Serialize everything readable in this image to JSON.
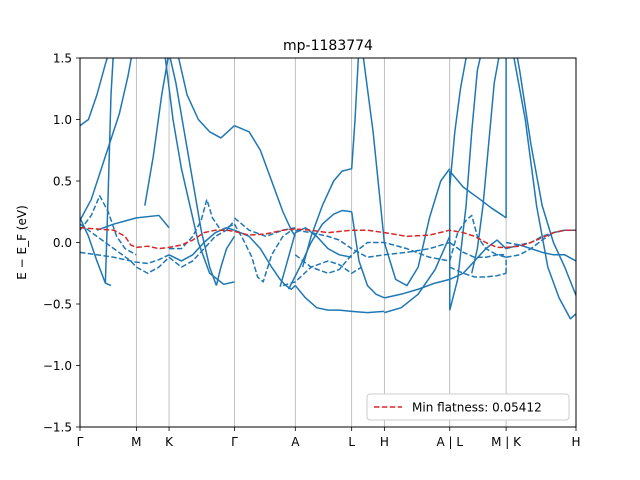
{
  "chart_data": {
    "type": "line",
    "title": "mp-1183774",
    "ylabel": "E − E_F (eV)",
    "ylim": [
      -1.5,
      1.5
    ],
    "xlim": [
      0,
      8.8
    ],
    "yticks": [
      -1.5,
      -1.0,
      -0.5,
      0.0,
      0.5,
      1.0,
      1.5
    ],
    "ytick_labels": [
      "−1.5",
      "−1.0",
      "−0.5",
      "0.0",
      "0.5",
      "1.0",
      "1.5"
    ],
    "kpoints": [
      {
        "label": "Γ",
        "x": 0.0
      },
      {
        "label": "M",
        "x": 1.0
      },
      {
        "label": "K",
        "x": 1.58
      },
      {
        "label": "Γ",
        "x": 2.74
      },
      {
        "label": "A",
        "x": 3.82
      },
      {
        "label": "L",
        "x": 4.82
      },
      {
        "label": "H",
        "x": 5.4
      },
      {
        "label": "A | L",
        "x": 6.56
      },
      {
        "label": "M | K",
        "x": 7.56
      },
      {
        "label": "H",
        "x": 8.8
      }
    ],
    "legend": {
      "label": "Min flatness: 0.05412",
      "location": "lower right"
    },
    "colors": {
      "band": "#1f77b4",
      "flat": "#d62728"
    },
    "series": [
      {
        "style": "solid",
        "x": [
          0,
          0.15,
          0.3,
          0.45,
          0.55
        ],
        "y": [
          0.95,
          1.0,
          1.2,
          1.45,
          1.6
        ]
      },
      {
        "style": "solid",
        "x": [
          0,
          0.2,
          0.45,
          0.7,
          0.85,
          0.95
        ],
        "y": [
          0.18,
          0.35,
          0.7,
          1.05,
          1.35,
          1.6
        ]
      },
      {
        "style": "solid",
        "x": [
          0,
          0.15,
          0.3,
          0.45,
          0.55
        ],
        "y": [
          0.2,
          0.05,
          -0.15,
          -0.33,
          -0.35
        ]
      },
      {
        "style": "solid",
        "x": [
          0.45,
          0.5,
          0.55,
          0.6
        ],
        "y": [
          -0.33,
          0.4,
          1.2,
          1.6
        ]
      },
      {
        "style": "solid",
        "x": [
          0.3,
          0.6,
          1.0,
          1.4,
          1.58
        ],
        "y": [
          0.1,
          0.15,
          0.2,
          0.22,
          0.12
        ]
      },
      {
        "style": "solid",
        "x": [
          1.15,
          1.3,
          1.45,
          1.6,
          1.75,
          1.9,
          2.1,
          2.3,
          2.5,
          2.74
        ],
        "y": [
          0.3,
          0.7,
          1.2,
          1.6,
          1.5,
          1.2,
          1.0,
          0.9,
          0.85,
          0.95
        ]
      },
      {
        "style": "solid",
        "x": [
          1.55,
          1.7,
          1.85,
          2.0,
          2.15,
          2.3,
          2.42
        ],
        "y": [
          1.6,
          1.3,
          0.9,
          0.5,
          0.1,
          -0.2,
          -0.35
        ]
      },
      {
        "style": "solid",
        "x": [
          1.5,
          1.65,
          1.8,
          1.95,
          2.1,
          2.3,
          2.55,
          2.74
        ],
        "y": [
          1.55,
          1.0,
          0.6,
          0.3,
          0.0,
          -0.25,
          -0.34,
          -0.32
        ]
      },
      {
        "style": "solid",
        "x": [
          2.42,
          2.5,
          2.6,
          2.74
        ],
        "y": [
          -0.35,
          -0.2,
          -0.05,
          0.05
        ]
      },
      {
        "style": "solid",
        "x": [
          1.58,
          1.8,
          2.0,
          2.2,
          2.4,
          2.6,
          2.74
        ],
        "y": [
          -0.1,
          -0.15,
          -0.1,
          0.0,
          0.08,
          0.12,
          0.1
        ]
      },
      {
        "style": "solid",
        "x": [
          2.74,
          3.0,
          3.2,
          3.4,
          3.6,
          3.75,
          3.82
        ],
        "y": [
          0.95,
          0.9,
          0.75,
          0.5,
          0.25,
          0.1,
          0.05
        ]
      },
      {
        "style": "solid",
        "x": [
          2.74,
          3.0,
          3.2,
          3.4,
          3.55,
          3.65,
          3.75,
          3.82
        ],
        "y": [
          0.1,
          0.05,
          -0.05,
          -0.2,
          -0.3,
          -0.35,
          -0.38,
          -0.35
        ]
      },
      {
        "style": "solid",
        "x": [
          3.55,
          3.65,
          3.82,
          4.0,
          4.2,
          4.4,
          4.6,
          4.82
        ],
        "y": [
          -0.36,
          -0.2,
          0.08,
          0.12,
          0.05,
          -0.05,
          -0.1,
          -0.12
        ]
      },
      {
        "style": "solid",
        "x": [
          3.7,
          3.9,
          4.1,
          4.3,
          4.5,
          4.65,
          4.82
        ],
        "y": [
          -0.38,
          -0.2,
          0.0,
          0.15,
          0.23,
          0.26,
          0.25
        ]
      },
      {
        "style": "solid",
        "x": [
          3.82,
          4.0,
          4.2,
          4.4,
          4.6,
          4.82,
          5.1,
          5.4
        ],
        "y": [
          -0.35,
          -0.45,
          -0.53,
          -0.55,
          -0.55,
          -0.56,
          -0.57,
          -0.56
        ]
      },
      {
        "style": "solid",
        "x": [
          3.95,
          4.1,
          4.3,
          4.5,
          4.65,
          4.82,
          4.88,
          4.95
        ],
        "y": [
          -0.2,
          0.05,
          0.3,
          0.5,
          0.58,
          0.6,
          1.0,
          1.6
        ]
      },
      {
        "style": "solid",
        "x": [
          4.82,
          4.95,
          5.1,
          5.25,
          5.4
        ],
        "y": [
          0.25,
          -0.15,
          -0.35,
          -0.42,
          -0.45
        ]
      },
      {
        "style": "solid",
        "x": [
          5.4,
          5.7,
          6.0,
          6.3,
          6.56
        ],
        "y": [
          -0.45,
          -0.42,
          -0.38,
          -0.33,
          -0.3
        ]
      },
      {
        "style": "solid",
        "x": [
          5.4,
          5.7,
          6.0,
          6.3,
          6.56
        ],
        "y": [
          -0.57,
          -0.53,
          -0.42,
          -0.22,
          0.05
        ]
      },
      {
        "style": "solid",
        "x": [
          5.0,
          5.2,
          5.4,
          5.6,
          5.8,
          6.0,
          6.2,
          6.4,
          6.56
        ],
        "y": [
          1.6,
          0.9,
          0.0,
          -0.3,
          -0.35,
          -0.2,
          0.2,
          0.5,
          0.6
        ]
      },
      {
        "style": "solid",
        "x": [
          6.56,
          6.8,
          7.1,
          7.3,
          7.5,
          7.56
        ],
        "y": [
          0.58,
          0.45,
          0.35,
          0.28,
          0.22,
          0.2
        ]
      },
      {
        "style": "solid",
        "x": [
          6.56,
          6.65,
          6.75,
          6.85,
          6.95,
          7.05
        ],
        "y": [
          0.45,
          0.9,
          1.25,
          1.5,
          1.6,
          1.5
        ]
      },
      {
        "style": "solid",
        "x": [
          6.56,
          6.7,
          6.85,
          6.95,
          7.05,
          7.15
        ],
        "y": [
          -0.55,
          -0.3,
          0.3,
          0.9,
          1.4,
          1.6
        ]
      },
      {
        "style": "solid",
        "x": [
          6.95,
          7.05,
          7.15,
          7.25,
          7.35,
          7.45,
          7.56
        ],
        "y": [
          -0.25,
          -0.05,
          0.3,
          0.8,
          1.3,
          1.55,
          1.6
        ]
      },
      {
        "style": "solid",
        "x": [
          7.56,
          7.65,
          7.72,
          7.8,
          8.0,
          8.2,
          8.4,
          8.6,
          8.8
        ],
        "y": [
          1.5,
          1.55,
          1.6,
          1.4,
          0.8,
          0.3,
          0.0,
          -0.2,
          -0.43
        ]
      },
      {
        "style": "solid",
        "x": [
          7.56,
          7.7,
          7.9,
          8.1,
          8.3,
          8.5,
          8.7,
          8.8
        ],
        "y": [
          1.6,
          1.5,
          1.0,
          0.3,
          -0.2,
          -0.45,
          -0.62,
          -0.58
        ]
      },
      {
        "style": "solid",
        "x": [
          7.56,
          7.56
        ],
        "y": [
          0.2,
          1.6
        ]
      },
      {
        "style": "solid",
        "x": [
          6.56,
          6.56
        ],
        "y": [
          -0.55,
          0.58
        ]
      },
      {
        "style": "solid",
        "x": [
          7.56,
          7.8,
          8.0,
          8.2,
          8.4,
          8.6,
          8.8
        ],
        "y": [
          -0.05,
          -0.02,
          -0.05,
          -0.08,
          -0.1,
          -0.1,
          -0.15
        ]
      },
      {
        "style": "solid",
        "x": [
          6.56,
          6.8,
          7.0,
          7.2,
          7.4,
          7.56
        ],
        "y": [
          -0.3,
          -0.25,
          -0.15,
          -0.05,
          0.02,
          -0.05
        ]
      },
      {
        "style": "dashed",
        "x": [
          0,
          0.2,
          0.35,
          0.5,
          0.65,
          0.8,
          1.0
        ],
        "y": [
          0.1,
          0.22,
          0.38,
          0.25,
          0.05,
          -0.05,
          -0.1
        ]
      },
      {
        "style": "dashed",
        "x": [
          0,
          0.3,
          0.6,
          0.9,
          1.0,
          1.2,
          1.4,
          1.58
        ],
        "y": [
          -0.08,
          -0.1,
          -0.12,
          -0.15,
          -0.16,
          -0.17,
          -0.14,
          -0.1
        ]
      },
      {
        "style": "dashed",
        "x": [
          0,
          0.3,
          0.6,
          0.9,
          1.0,
          1.2,
          1.4,
          1.58
        ],
        "y": [
          0.15,
          0.05,
          -0.05,
          -0.15,
          -0.2,
          -0.25,
          -0.2,
          -0.12
        ]
      },
      {
        "style": "dashed",
        "x": [
          1.58,
          1.8,
          2.0,
          2.15,
          2.25,
          2.35,
          2.5,
          2.74
        ],
        "y": [
          -0.05,
          -0.05,
          0.05,
          0.18,
          0.35,
          0.2,
          0.1,
          0.15
        ]
      },
      {
        "style": "dashed",
        "x": [
          1.58,
          1.8,
          2.0,
          2.2,
          2.4,
          2.6,
          2.74
        ],
        "y": [
          -0.12,
          -0.2,
          -0.15,
          -0.05,
          0.05,
          0.1,
          0.18
        ]
      },
      {
        "style": "dashed",
        "x": [
          2.74,
          2.9,
          3.05,
          3.15,
          3.25,
          3.4,
          3.6,
          3.82
        ],
        "y": [
          0.15,
          0.02,
          -0.12,
          -0.28,
          -0.32,
          -0.1,
          0.05,
          0.12
        ]
      },
      {
        "style": "dashed",
        "x": [
          2.74,
          3.0,
          3.3,
          3.6,
          3.82
        ],
        "y": [
          0.2,
          0.1,
          0.05,
          0.1,
          0.12
        ]
      },
      {
        "style": "dashed",
        "x": [
          3.82,
          4.1,
          4.4,
          4.6,
          4.82,
          5.1,
          5.4,
          5.8,
          6.2,
          6.56
        ],
        "y": [
          0.1,
          0.08,
          0.05,
          0.02,
          -0.05,
          -0.12,
          -0.1,
          -0.08,
          -0.05,
          0.0
        ]
      },
      {
        "style": "dashed",
        "x": [
          3.82,
          4.1,
          4.4,
          4.6,
          4.82,
          5.1,
          5.4,
          5.8,
          6.2,
          6.56
        ],
        "y": [
          -0.1,
          -0.2,
          -0.25,
          -0.22,
          -0.1,
          0.0,
          0.0,
          -0.05,
          -0.12,
          -0.15
        ]
      },
      {
        "style": "dashed",
        "x": [
          3.6,
          3.82,
          4.1,
          4.4,
          4.6,
          4.82,
          5.0
        ],
        "y": [
          -0.35,
          -0.32,
          -0.2,
          -0.15,
          -0.18,
          -0.25,
          -0.2
        ]
      },
      {
        "style": "dashed",
        "x": [
          6.56,
          6.8,
          7.0,
          7.2,
          7.4,
          7.56
        ],
        "y": [
          -0.2,
          -0.25,
          -0.28,
          -0.28,
          -0.27,
          -0.25
        ]
      },
      {
        "style": "dashed",
        "x": [
          7.56,
          7.56
        ],
        "y": [
          -0.25,
          -0.12
        ]
      },
      {
        "style": "dashed",
        "x": [
          6.56,
          6.8,
          7.0,
          7.2,
          7.4,
          7.56
        ],
        "y": [
          0.0,
          -0.08,
          -0.12,
          -0.12,
          -0.1,
          -0.12
        ]
      },
      {
        "style": "dashed",
        "x": [
          7.56,
          7.8,
          8.0,
          8.2,
          8.4,
          8.6,
          8.8
        ],
        "y": [
          -0.12,
          -0.1,
          -0.05,
          0.02,
          0.08,
          0.1,
          0.1
        ]
      },
      {
        "style": "dashed",
        "x": [
          7.56,
          7.8,
          8.0,
          8.2,
          8.4,
          8.6,
          8.8
        ],
        "y": [
          0.0,
          -0.02,
          0.0,
          0.05,
          0.08,
          0.1,
          0.1
        ]
      },
      {
        "style": "dashed",
        "x": [
          6.56,
          6.7,
          6.85,
          6.95,
          7.05,
          7.2,
          7.4,
          7.56
        ],
        "y": [
          -0.15,
          0.08,
          0.18,
          0.22,
          0.05,
          -0.05,
          -0.1,
          -0.1
        ]
      },
      {
        "style": "flat",
        "x": [
          0,
          0.3,
          0.6,
          0.8,
          0.9,
          1.0,
          1.2,
          1.4,
          1.58,
          1.8,
          2.0,
          2.2,
          2.4,
          2.6,
          2.74,
          3.0,
          3.3,
          3.6,
          3.82,
          4.1,
          4.4,
          4.82,
          5.1,
          5.4,
          5.8,
          6.2,
          6.56,
          6.8,
          7.0,
          7.2,
          7.4,
          7.56,
          7.8,
          8.0,
          8.2,
          8.4,
          8.6,
          8.8
        ],
        "y": [
          0.12,
          0.11,
          0.1,
          0.05,
          -0.02,
          -0.04,
          -0.03,
          -0.05,
          -0.04,
          -0.02,
          0.02,
          0.08,
          0.1,
          0.1,
          0.09,
          0.06,
          0.07,
          0.1,
          0.11,
          0.1,
          0.08,
          0.1,
          0.1,
          0.08,
          0.05,
          0.06,
          0.1,
          0.08,
          0.05,
          0.0,
          -0.04,
          -0.04,
          -0.03,
          0.0,
          0.04,
          0.08,
          0.1,
          0.1
        ]
      }
    ]
  }
}
